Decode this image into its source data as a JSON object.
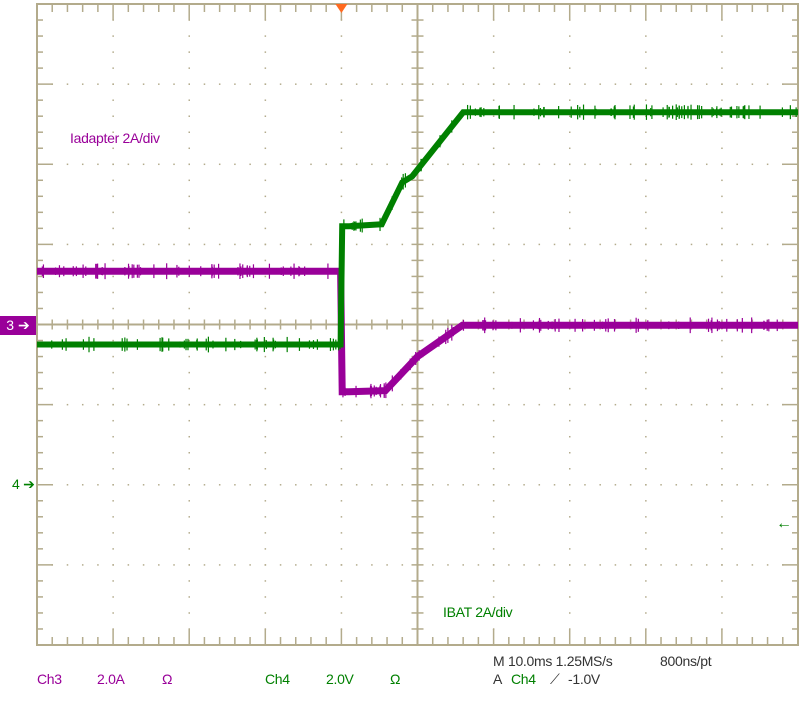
{
  "chart_data": {
    "type": "line",
    "title": "",
    "xlabel": "",
    "ylabel": "",
    "x_unit": "ms",
    "y_unit": "A",
    "xlim": [
      -40,
      60
    ],
    "x_div": 10,
    "grid": true,
    "series": [
      {
        "name": "Iadapter 2A/div",
        "channel": "3",
        "color": "#990099",
        "ylim": [
          -6.4,
          9.6
        ],
        "x": [
          -40,
          -0.1,
          0.1,
          1,
          5.8,
          10,
          15.9,
          60
        ],
        "y": [
          2.93,
          2.93,
          -0.08,
          -0.08,
          -0.05,
          0.8,
          1.58,
          1.58
        ]
      },
      {
        "name": "IBAT 2A/div",
        "channel": "4",
        "color": "#008000",
        "ylim": [
          -10.4,
          5.6
        ],
        "x": [
          -40,
          -0.1,
          0.1,
          1,
          5.3,
          8.0,
          9.3,
          16.0,
          60
        ],
        "y": [
          -2.9,
          -2.9,
          0.05,
          0.05,
          0.1,
          1.15,
          1.3,
          2.9,
          2.9
        ]
      }
    ],
    "annotations": {
      "ch3_label": "Iadapter 2A/div",
      "ch4_label": "IBAT 2A/div",
      "ch3_marker": "3",
      "ch4_marker": "4",
      "trigger_marker_color": "#ff6a20"
    }
  },
  "readout": {
    "ch3": {
      "name": "Ch3",
      "scale": "2.0A",
      "coupling": "Ω"
    },
    "ch4": {
      "name": "Ch4",
      "scale": "2.0V",
      "coupling": "Ω"
    },
    "timebase": "M 10.0ms 1.25MS/s",
    "record": "800ns/pt",
    "trigger_mode": "A",
    "trigger_source": "Ch4",
    "trigger_slope_icon": "rising-edge-icon",
    "trigger_level": "-1.0V"
  }
}
